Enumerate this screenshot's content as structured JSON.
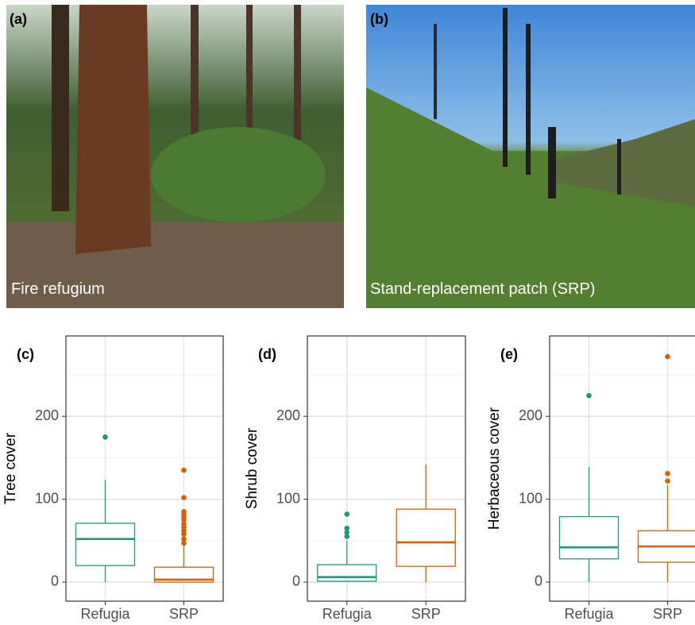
{
  "photos": [
    {
      "label": "(a)",
      "caption": "Fire refugium"
    },
    {
      "label": "(b)",
      "caption": "Stand-replacement patch (SRP)"
    }
  ],
  "chart_data": [
    {
      "type": "box",
      "label": "(c)",
      "y_label": "Tree cover",
      "categories": [
        "Refugia",
        "SRP"
      ],
      "boxes": [
        {
          "color": "#1b9e77",
          "whisker_low": 0,
          "q1": 20,
          "median": 52,
          "q3": 71,
          "whisker_high": 123,
          "outliers": [
            175
          ]
        },
        {
          "color": "#d95f02",
          "whisker_low": 0,
          "q1": 0,
          "median": 3,
          "q3": 18,
          "whisker_high": 44,
          "outliers": [
            135,
            102,
            85,
            82,
            78,
            75,
            70,
            66,
            62,
            58,
            52,
            47
          ]
        }
      ],
      "ylim": [
        -23,
        297
      ],
      "yticks": [
        0,
        100,
        200
      ],
      "minor_grid": [
        50,
        150,
        250
      ],
      "grid": true
    },
    {
      "type": "box",
      "label": "(d)",
      "y_label": "Shrub cover",
      "categories": [
        "Refugia",
        "SRP"
      ],
      "boxes": [
        {
          "color": "#1b9e77",
          "whisker_low": 0,
          "q1": 1,
          "median": 6,
          "q3": 21,
          "whisker_high": 50,
          "outliers": [
            82,
            65,
            60,
            55
          ]
        },
        {
          "color": "#d95f02",
          "whisker_low": 0,
          "q1": 19,
          "median": 48,
          "q3": 88,
          "whisker_high": 142,
          "outliers": []
        }
      ],
      "ylim": [
        -23,
        297
      ],
      "yticks": [
        0,
        100,
        200
      ],
      "minor_grid": [
        50,
        150,
        250
      ],
      "grid": true
    },
    {
      "type": "box",
      "label": "(e)",
      "y_label": "Herbaceous cover",
      "categories": [
        "Refugia",
        "SRP"
      ],
      "boxes": [
        {
          "color": "#1b9e77",
          "whisker_low": 0,
          "q1": 28,
          "median": 42,
          "q3": 79,
          "whisker_high": 139,
          "outliers": [
            225
          ]
        },
        {
          "color": "#d95f02",
          "whisker_low": 0,
          "q1": 24,
          "median": 43,
          "q3": 62,
          "whisker_high": 117,
          "outliers": [
            131,
            122,
            272
          ]
        }
      ],
      "ylim": [
        -23,
        297
      ],
      "yticks": [
        0,
        100,
        200
      ],
      "minor_grid": [
        50,
        150,
        250
      ],
      "grid": true
    }
  ]
}
